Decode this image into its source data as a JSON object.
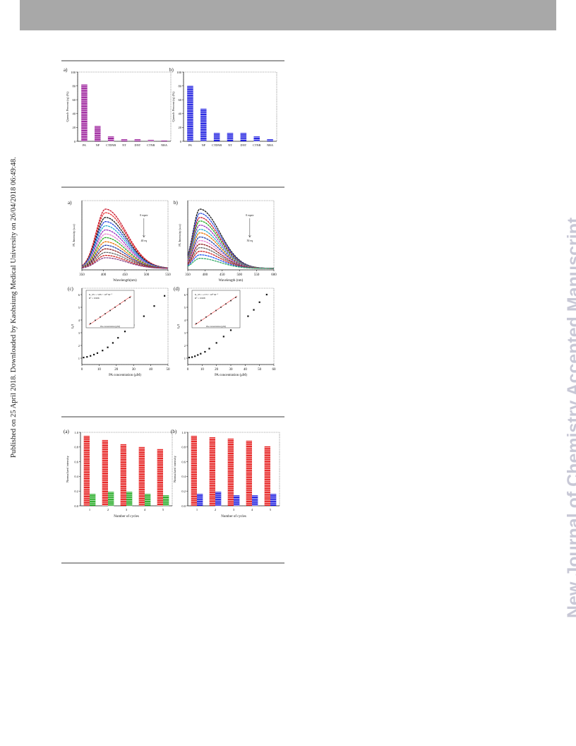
{
  "page": {
    "sidebar_text": "Published on 25 April 2018. Downloaded by Kaohsiung Medical University on 26/04/2018 06:49:48.",
    "watermark": "New Journal of Chemistry Accepted Manuscript"
  },
  "figures": [
    {
      "id": "quench-a",
      "panel": "a)",
      "type": "bar",
      "ylabel": "Quench Percent (η) (%)",
      "categories": [
        "PA",
        "NP",
        "CTDNB",
        "NT",
        "DNT",
        "CTNB",
        "NBA"
      ],
      "values": [
        82,
        22,
        7,
        3,
        3,
        2,
        1
      ],
      "ylim": [
        0,
        100
      ],
      "yticks": [
        "0",
        "20",
        "40",
        "60",
        "80",
        "100"
      ],
      "color": "#9b1f9b"
    },
    {
      "id": "quench-b",
      "panel": "b)",
      "type": "bar",
      "ylabel": "Quench Percent (η) (%)",
      "categories": [
        "PA",
        "NP",
        "CTDNB",
        "NT",
        "DNT",
        "CTNB",
        "NBA"
      ],
      "values": [
        80,
        47,
        12,
        12,
        12,
        7,
        3
      ],
      "ylim": [
        0,
        100
      ],
      "yticks": [
        "0",
        "20",
        "40",
        "60",
        "80",
        "100"
      ],
      "color": "#1e1ee0"
    },
    {
      "id": "pl-a",
      "panel": "a)",
      "type": "line",
      "xlabel": "Wavelength(nm)",
      "ylabel": "PL Intensity (a.u)",
      "xlim": [
        350,
        550
      ],
      "xticks": [
        "350",
        "400",
        "450",
        "500",
        "550"
      ],
      "peak_x": 405,
      "sigma_left": 22,
      "sigma_right": 48,
      "peaks": [
        1.0,
        0.94,
        0.86,
        0.79,
        0.72,
        0.65,
        0.58,
        0.52,
        0.45,
        0.39,
        0.33,
        0.27,
        0.22,
        0.18
      ],
      "annot_top": "0 equiv",
      "annot_bottom": "40 eq",
      "colors": [
        "#c8142a",
        "#e63333",
        "#1a1a1a",
        "#2244dd",
        "#22aacc",
        "#9b2fbf",
        "#e680d0",
        "#22aa22",
        "#e67300",
        "#1f3fa8",
        "#8b1a1a",
        "#666666",
        "#cc2222",
        "#884488"
      ]
    },
    {
      "id": "pl-b",
      "panel": "b)",
      "type": "line",
      "xlabel": "Wavelength (nm)",
      "ylabel": "PL Intensity (a.u)",
      "xlim": [
        350,
        600
      ],
      "xticks": [
        "350",
        "400",
        "450",
        "500",
        "550",
        "600"
      ],
      "peak_x": 385,
      "sigma_left": 20,
      "sigma_right": 58,
      "peaks": [
        1.0,
        0.93,
        0.86,
        0.8,
        0.73,
        0.66,
        0.6,
        0.53,
        0.47,
        0.41,
        0.35,
        0.29,
        0.23,
        0.17
      ],
      "annot_top": "0 equiv",
      "annot_bottom": "50 eq",
      "colors": [
        "#1a1a1a",
        "#2244dd",
        "#c8142a",
        "#22aa22",
        "#9b2fbf",
        "#22aacc",
        "#e67300",
        "#1f3fa8",
        "#e680d0",
        "#8b1a1a",
        "#666666",
        "#cc2222",
        "#2255ee",
        "#33aa66"
      ]
    },
    {
      "id": "sv-a",
      "panel": "(c)",
      "type": "scatter",
      "xlabel": "PA concentration (μM)",
      "ylabel": "I₀/I",
      "x": [
        1,
        3,
        5,
        7,
        9,
        12,
        15,
        18,
        21,
        25,
        30,
        36,
        42,
        48
      ],
      "y": [
        1.05,
        1.1,
        1.18,
        1.28,
        1.4,
        1.6,
        1.85,
        2.2,
        2.6,
        3.1,
        3.6,
        4.3,
        5.1,
        5.9
      ],
      "xlim": [
        0,
        50
      ],
      "xticks": [
        "0",
        "10",
        "20",
        "30",
        "40",
        "50"
      ],
      "ylim": [
        0.5,
        6.5
      ],
      "yticks": [
        "1",
        "2",
        "3",
        "4",
        "5",
        "6"
      ],
      "inset_eq": "K_SV = 3.85 × 10⁴ M⁻¹",
      "inset_r2": "R² = 0.996",
      "inset_xlabel": "PA concentration (μM)"
    },
    {
      "id": "sv-b",
      "panel": "(d)",
      "type": "scatter",
      "xlabel": "PA concentration (μM)",
      "ylabel": "I₀/I",
      "x": [
        1,
        3,
        5,
        7,
        9,
        12,
        15,
        20,
        25,
        30,
        35,
        42,
        46,
        50,
        55
      ],
      "y": [
        1.05,
        1.08,
        1.15,
        1.25,
        1.35,
        1.5,
        1.75,
        2.2,
        2.7,
        3.2,
        3.6,
        4.3,
        4.8,
        5.4,
        6.0
      ],
      "xlim": [
        0,
        60
      ],
      "xticks": [
        "0",
        "10",
        "20",
        "30",
        "40",
        "50",
        "60"
      ],
      "ylim": [
        0.5,
        6.5
      ],
      "yticks": [
        "1",
        "2",
        "3",
        "4",
        "5",
        "6"
      ],
      "inset_eq": "K_SV = 2.73 × 10⁴ M⁻¹",
      "inset_r2": "R² = 0.998",
      "inset_xlabel": "PA concentration (μM)"
    },
    {
      "id": "cycle-a",
      "panel": "(a)",
      "type": "grouped-bar",
      "xlabel": "Number of cycles",
      "ylabel": "Normalized intensity",
      "categories": [
        "1",
        "2",
        "3",
        "4",
        "5"
      ],
      "series": [
        {
          "values": [
            1.0,
            0.94,
            0.88,
            0.84,
            0.81
          ],
          "color": "#e61e1e"
        },
        {
          "values": [
            0.17,
            0.2,
            0.2,
            0.17,
            0.15
          ],
          "color": "#22aa22"
        }
      ],
      "ylim": [
        0,
        1.05
      ],
      "yticks": [
        "0.0",
        "0.2",
        "0.4",
        "0.6",
        "0.8",
        "1.0"
      ]
    },
    {
      "id": "cycle-b",
      "panel": "(b)",
      "type": "grouped-bar",
      "xlabel": "Number of cycles",
      "ylabel": "Normalized intensity",
      "categories": [
        "1",
        "2",
        "3",
        "4",
        "5"
      ],
      "series": [
        {
          "values": [
            1.0,
            0.98,
            0.96,
            0.93,
            0.85
          ],
          "color": "#e61e1e"
        },
        {
          "values": [
            0.17,
            0.2,
            0.15,
            0.15,
            0.17
          ],
          "color": "#1e1ee0"
        }
      ],
      "ylim": [
        0,
        1.05
      ],
      "yticks": [
        "0.0",
        "0.2",
        "0.4",
        "0.6",
        "0.8",
        "1.0"
      ]
    }
  ]
}
